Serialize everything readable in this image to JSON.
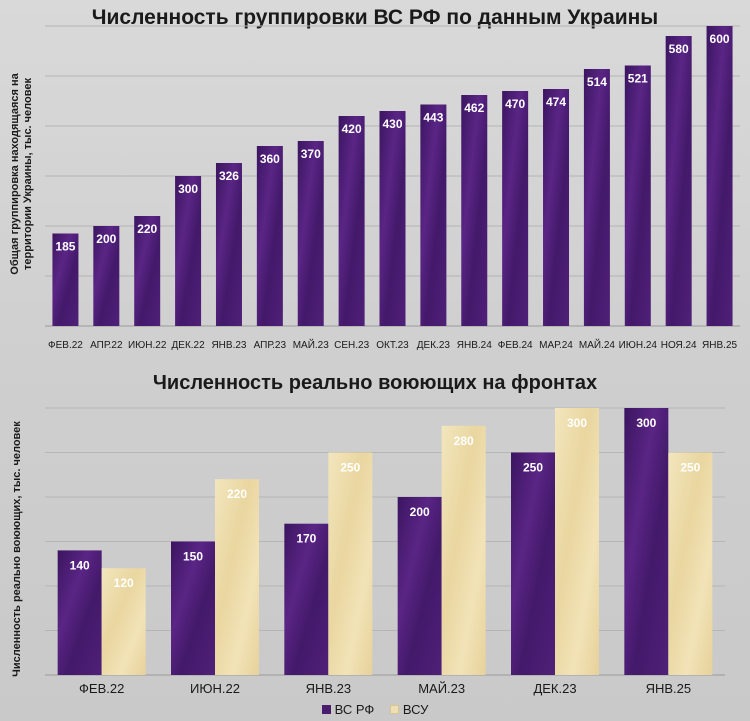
{
  "chart_data": [
    {
      "type": "bar",
      "title": "Численность группировки ВС РФ по данным Украины",
      "ylabel": "Общая группировка находящаяся на территории Украины, тыс. человек",
      "xlabel": "",
      "categories": [
        "ФЕВ.22",
        "АПР.22",
        "ИЮН.22",
        "ДЕК.22",
        "ЯНВ.23",
        "АПР.23",
        "МАЙ.23",
        "СЕН.23",
        "ОКТ.23",
        "ДЕК.23",
        "ЯНВ.24",
        "ФЕВ.24",
        "МАР.24",
        "МАЙ.24",
        "ИЮН.24",
        "НОЯ.24",
        "ЯНВ.25"
      ],
      "series": [
        {
          "values": [
            185,
            200,
            220,
            300,
            326,
            360,
            370,
            420,
            430,
            443,
            462,
            470,
            474,
            514,
            521,
            580,
            600
          ]
        }
      ],
      "ylim": [
        0,
        600
      ],
      "grid": true,
      "colors": [
        "#4a1d6e"
      ]
    },
    {
      "type": "bar",
      "title": "Численность реально воюющих на фронтах",
      "ylabel": "Численность реально воюющих, тыс. человек",
      "xlabel": "",
      "categories": [
        "ФЕВ.22",
        "ИЮН.22",
        "ЯНВ.23",
        "МАЙ.23",
        "ДЕК.23",
        "ЯНВ.25"
      ],
      "series": [
        {
          "name": "ВС РФ",
          "values": [
            140,
            150,
            170,
            200,
            250,
            300
          ]
        },
        {
          "name": "ВСУ",
          "values": [
            120,
            220,
            250,
            280,
            300,
            250
          ]
        }
      ],
      "ylim": [
        0,
        300
      ],
      "grid": true,
      "legend": "bottom",
      "colors": [
        "#4a1d6e",
        "#efe0b4"
      ]
    }
  ]
}
